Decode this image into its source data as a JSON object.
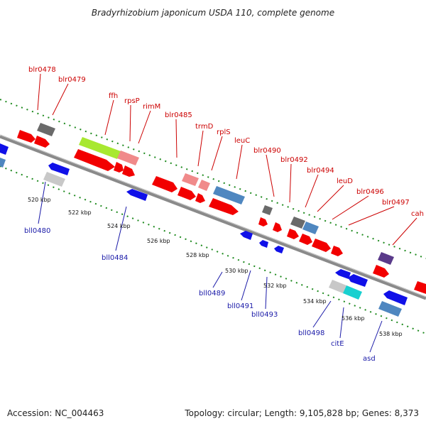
{
  "header": {
    "title": "Bradyrhizobium japonicum USDA 110, complete genome"
  },
  "footer": {
    "accession": "Accession: NC_004463",
    "topology": "Topology: circular; Length: 9,105,828 bp; Genes: 8,373"
  },
  "colors": {
    "backbone": "#8a8a8a",
    "tick_dots": "#1e8a1e",
    "top_label": "#cc0000",
    "bottom_label": "#1a1aa8",
    "gene_red": "#f20000",
    "gene_pink": "#f08a8a",
    "gene_lime": "#a8e830",
    "gene_steel": "#4f87c0",
    "gene_gray": "#6a6a6a",
    "gene_lightgray": "#c8c8c8",
    "gene_blue": "#1010e8",
    "gene_cyan": "#18d0d0",
    "gene_purple": "#5a3a8a"
  },
  "top_labels": [
    "blr0478",
    "blr0479",
    "ffh",
    "rpsP",
    "rimM",
    "blr0485",
    "trmD",
    "rplS",
    "leuC",
    "blr0490",
    "blr0492",
    "blr0494",
    "leuD",
    "blr0496",
    "blr0497",
    "cah"
  ],
  "bottom_labels": [
    "bll0480",
    "bll0484",
    "bll0489",
    "bll0491",
    "bll0493",
    "bll0498",
    "citE",
    "asd"
  ],
  "scale_ticks": [
    "520 kbp",
    "522 kbp",
    "524 kbp",
    "526 kbp",
    "528 kbp",
    "530 kbp",
    "532 kbp",
    "534 kbp",
    "536 kbp",
    "538 kbp"
  ]
}
